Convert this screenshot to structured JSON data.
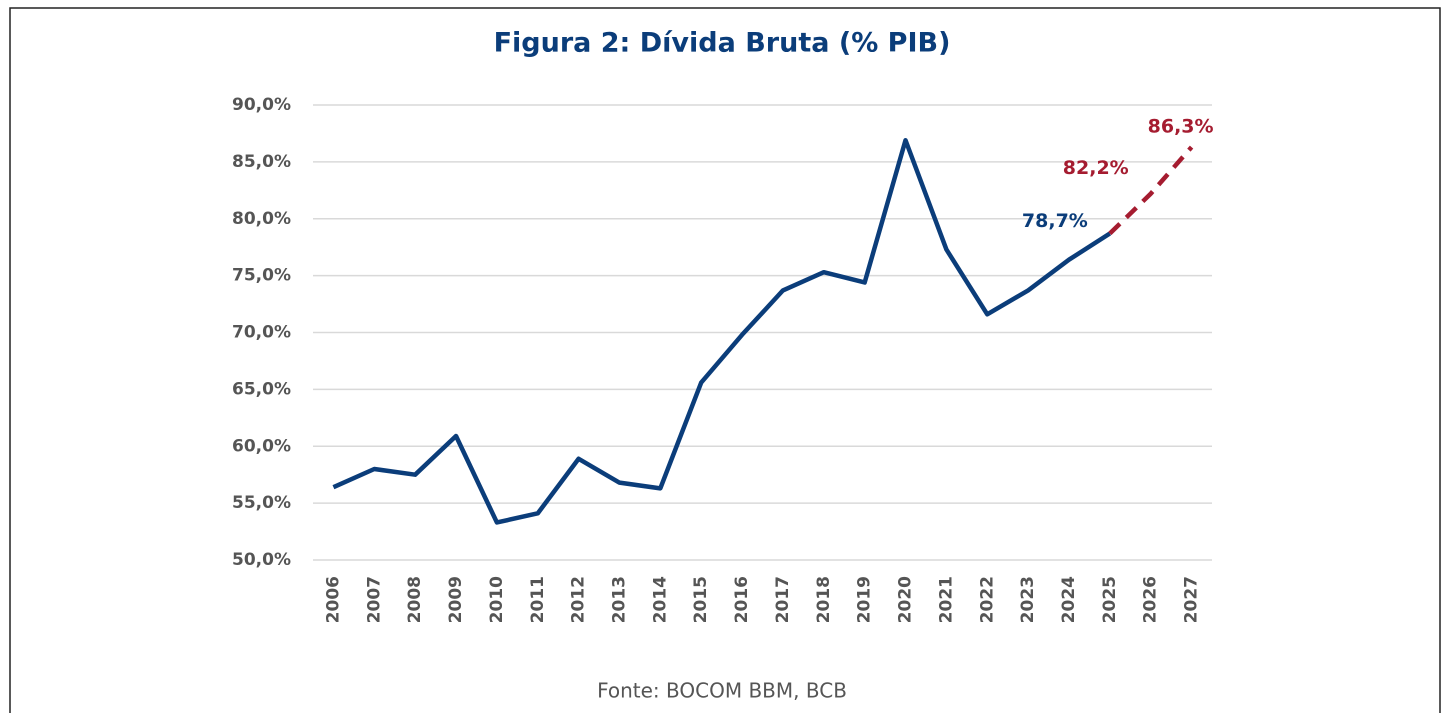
{
  "chart_data": {
    "type": "line",
    "title": "Figura 2: Dívida Bruta (% PIB)",
    "source": "Fonte: BOCOM BBM, BCB",
    "categories": [
      "2006",
      "2007",
      "2008",
      "2009",
      "2010",
      "2011",
      "2012",
      "2013",
      "2014",
      "2015",
      "2016",
      "2017",
      "2018",
      "2019",
      "2020",
      "2021",
      "2022",
      "2023",
      "2024",
      "2025",
      "2026",
      "2027"
    ],
    "series": [
      {
        "name": null,
        "color": "#0b3d7a",
        "dashed": false,
        "values": [
          56.4,
          58.0,
          57.5,
          60.9,
          53.3,
          54.1,
          58.9,
          56.8,
          56.3,
          65.6,
          69.8,
          73.7,
          75.3,
          74.4,
          86.9,
          77.3,
          71.6,
          73.7,
          76.4,
          78.7,
          null,
          null
        ],
        "value_labels": [
          null,
          null,
          null,
          null,
          null,
          null,
          null,
          null,
          null,
          null,
          null,
          null,
          null,
          null,
          null,
          null,
          null,
          null,
          null,
          "78,7%",
          null,
          null
        ]
      },
      {
        "name": null,
        "color": "#a51c30",
        "dashed": true,
        "values": [
          null,
          null,
          null,
          null,
          null,
          null,
          null,
          null,
          null,
          null,
          null,
          null,
          null,
          null,
          null,
          null,
          null,
          null,
          null,
          78.7,
          82.2,
          86.3
        ],
        "value_labels": [
          null,
          null,
          null,
          null,
          null,
          null,
          null,
          null,
          null,
          null,
          null,
          null,
          null,
          null,
          null,
          null,
          null,
          null,
          null,
          null,
          "82,2%",
          "86,3%"
        ]
      }
    ],
    "ylim": [
      50,
      90
    ],
    "yticks": [
      {
        "value": 50,
        "label": "50,0%"
      },
      {
        "value": 55,
        "label": "55,0%"
      },
      {
        "value": 60,
        "label": "60,0%"
      },
      {
        "value": 65,
        "label": "65,0%"
      },
      {
        "value": 70,
        "label": "70,0%"
      },
      {
        "value": 75,
        "label": "75,0%"
      },
      {
        "value": 80,
        "label": "80,0%"
      },
      {
        "value": 85,
        "label": "85,0%"
      },
      {
        "value": 90,
        "label": "90,0%"
      }
    ],
    "grid": true
  }
}
